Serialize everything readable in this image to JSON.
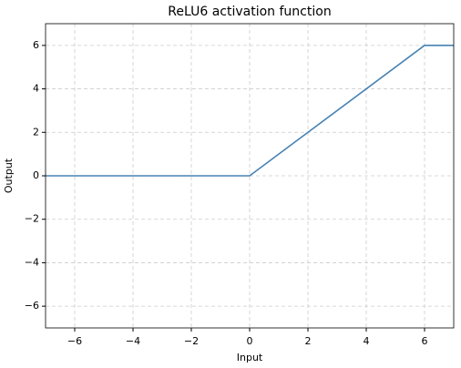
{
  "chart_data": {
    "type": "line",
    "title": "ReLU6 activation function",
    "x_label": "Input",
    "y_label": "Output",
    "x": [
      -7,
      0,
      6,
      7
    ],
    "series": [
      {
        "color": "#4682b4",
        "values": [
          0,
          0,
          6,
          6
        ]
      }
    ],
    "xlim": [
      -7,
      7
    ],
    "ylim": [
      -7,
      7
    ],
    "xticks": [
      {
        "value": -6,
        "label": "−6"
      },
      {
        "value": -4,
        "label": "−4"
      },
      {
        "value": -2,
        "label": "−2"
      },
      0,
      2,
      4,
      6
    ],
    "yticks": [
      {
        "value": -6,
        "label": "−6"
      },
      {
        "value": -4,
        "label": "−4"
      },
      {
        "value": -2,
        "label": "−2"
      },
      0,
      2,
      4,
      6
    ],
    "grid": true
  }
}
